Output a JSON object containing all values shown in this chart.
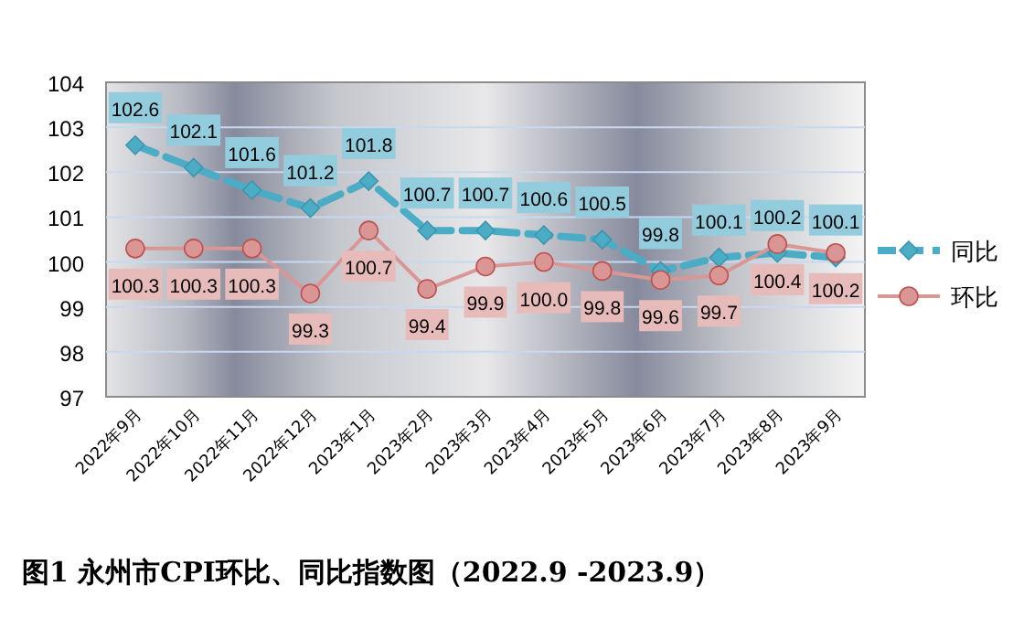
{
  "chart_data": {
    "type": "line",
    "title": "图1  永州市CPI环比、同比指数图（2022.9 -2023.9）",
    "categories": [
      "2022年9月",
      "2022年10月",
      "2022年11月",
      "2022年12月",
      "2023年1月",
      "2023年2月",
      "2023年3月",
      "2023年4月",
      "2023年5月",
      "2023年6月",
      "2023年7月",
      "2023年8月",
      "2023年9月"
    ],
    "series": [
      {
        "name": "同比",
        "color": "#4bacc6",
        "marker": "diamond",
        "line_style": "dashed",
        "values": [
          102.6,
          102.1,
          101.6,
          101.2,
          101.8,
          100.7,
          100.7,
          100.6,
          100.5,
          99.8,
          100.1,
          100.2,
          100.1
        ],
        "value_labels": [
          "102.6",
          "102.1",
          "101.6",
          "101.2",
          "101.8",
          "100.7",
          "100.7",
          "100.6",
          "100.5",
          "99.8",
          "100.1",
          "100.2",
          "100.1"
        ]
      },
      {
        "name": "环比",
        "color": "#d99694",
        "marker": "circle",
        "line_style": "solid",
        "values": [
          100.3,
          100.3,
          100.3,
          99.3,
          100.7,
          99.4,
          99.9,
          100.0,
          99.8,
          99.6,
          99.7,
          100.4,
          100.2
        ],
        "value_labels": [
          "100.3",
          "100.3",
          "100.3",
          "99.3",
          "100.7",
          "99.4",
          "99.9",
          "100.0",
          "99.8",
          "99.6",
          "99.7",
          "100.4",
          "100.2"
        ]
      }
    ],
    "ylim": [
      97,
      104
    ],
    "yticks": [
      97,
      98,
      99,
      100,
      101,
      102,
      103,
      104
    ],
    "grid": "y",
    "legend": "right"
  }
}
